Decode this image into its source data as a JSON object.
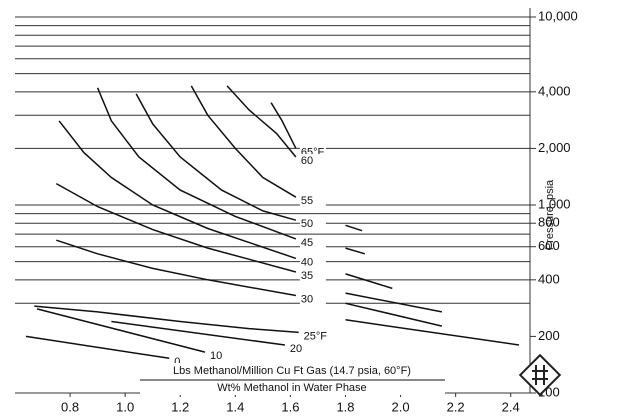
{
  "chart_data": {
    "type": "line",
    "ylog": true,
    "xlim": [
      0.6,
      2.47
    ],
    "ylim": [
      100,
      10000
    ],
    "xticks": [
      0.8,
      {
        "value": 1,
        "label": "1.0"
      },
      1.2,
      1.4,
      1.6,
      1.8,
      {
        "value": 2,
        "label": "2.0"
      },
      2.2,
      2.4
    ],
    "yticks": [
      {
        "value": 10000,
        "label": "10,000"
      },
      {
        "value": 4000,
        "label": "4,000"
      },
      {
        "value": 2000,
        "label": "2,000"
      },
      {
        "value": 1000,
        "label": "1,000"
      },
      800,
      600,
      400,
      200,
      100
    ],
    "ygrid": [
      10000,
      9000,
      8000,
      7000,
      6000,
      5000,
      4000,
      3000,
      2000,
      1000,
      900,
      800,
      700,
      600,
      500,
      400,
      300
    ],
    "y_label": "Pressure, psia",
    "x_label": "Lbs Methanol/Million Cu Ft Gas (14.7 psia, 60°F)",
    "x_label_2": "Wt% Methanol in Water Phase",
    "color": "#111111",
    "series": [
      {
        "name": "65°F",
        "x": [
          1.53,
          1.57,
          1.62
        ],
        "values": [
          3500,
          2800,
          2000
        ]
      },
      {
        "name": "60",
        "x": [
          1.37,
          1.45,
          1.55,
          1.62
        ],
        "values": [
          4300,
          3200,
          2400,
          1800
        ]
      },
      {
        "name": "55",
        "x": [
          1.24,
          1.3,
          1.4,
          1.5,
          1.62
        ],
        "values": [
          4300,
          3000,
          2000,
          1400,
          1100
        ]
      },
      {
        "name": "50",
        "x": [
          1.04,
          1.1,
          1.2,
          1.35,
          1.5,
          1.62,
          1.7,
          1.8,
          1.86
        ],
        "values": [
          3900,
          2700,
          1800,
          1200,
          930,
          830,
          null,
          780,
          730
        ]
      },
      {
        "name": "45",
        "x": [
          0.9,
          0.95,
          1.05,
          1.2,
          1.4,
          1.62,
          1.7,
          1.8,
          1.87
        ],
        "values": [
          4200,
          2800,
          1800,
          1200,
          870,
          660,
          null,
          590,
          550
        ]
      },
      {
        "name": "40",
        "x": [
          0.76,
          0.85,
          0.95,
          1.1,
          1.3,
          1.62,
          1.7,
          1.8,
          1.97
        ],
        "values": [
          2800,
          1900,
          1400,
          1000,
          750,
          520,
          null,
          430,
          360
        ]
      },
      {
        "name": "35",
        "x": [
          0.75,
          0.9,
          1.1,
          1.3,
          1.62,
          1.7,
          1.8,
          2.15
        ],
        "values": [
          1300,
          980,
          740,
          590,
          440,
          null,
          340,
          270
        ]
      },
      {
        "name": "30",
        "x": [
          0.75,
          0.9,
          1.1,
          1.3,
          1.62,
          1.7,
          1.8,
          2.15
        ],
        "values": [
          650,
          550,
          460,
          400,
          330,
          null,
          300,
          227
        ]
      },
      {
        "name": "25°F",
        "x": [
          0.67,
          0.9,
          1.2,
          1.45,
          1.63,
          1.7,
          1.8,
          2.43
        ],
        "values": [
          290,
          270,
          240,
          220,
          210,
          null,
          245,
          180
        ]
      },
      {
        "name": "20",
        "x": [
          0.95,
          1.58
        ],
        "values": [
          240,
          180
        ]
      },
      {
        "name": "10",
        "x": [
          0.68,
          1.29
        ],
        "values": [
          280,
          165
        ]
      },
      {
        "name": "0",
        "x": [
          0.64,
          1.16
        ],
        "values": [
          200,
          153
        ]
      }
    ]
  }
}
